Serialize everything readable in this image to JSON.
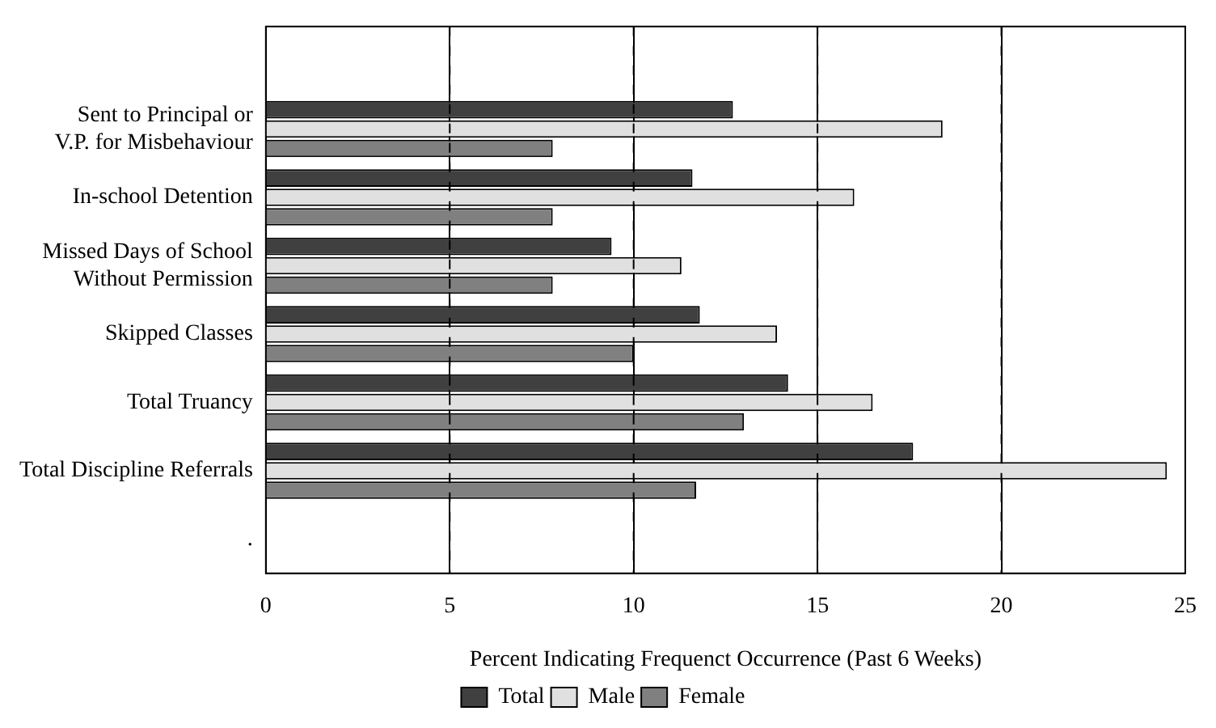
{
  "chart_data": {
    "type": "bar",
    "orientation": "horizontal",
    "xlabel": "Percent Indicating Frequenct Occurrence (Past 6 Weeks)",
    "categories": [
      null,
      "Sent to Principal or\nV.P. for Misbehaviour",
      "In-school Detention",
      "Missed Days of School\nWithout Permission",
      "Skipped Classes",
      "Total Truancy",
      "Total Discipline Referrals",
      "."
    ],
    "series": [
      {
        "name": "Total",
        "color": "#404040",
        "values": [
          null,
          12.7,
          11.6,
          9.4,
          11.8,
          14.2,
          17.6,
          null
        ]
      },
      {
        "name": "Male",
        "color": "#e0e0e0",
        "values": [
          null,
          18.4,
          16.0,
          11.3,
          13.9,
          16.5,
          24.5,
          null
        ]
      },
      {
        "name": "Female",
        "color": "#808080",
        "values": [
          null,
          7.8,
          7.8,
          7.8,
          10.0,
          13.0,
          11.7,
          null
        ]
      }
    ],
    "xlim": [
      0,
      25
    ],
    "xticks": [
      0,
      5,
      10,
      15,
      20,
      25
    ],
    "grid": "x",
    "line_style": "dashed",
    "legend": "bottom"
  }
}
